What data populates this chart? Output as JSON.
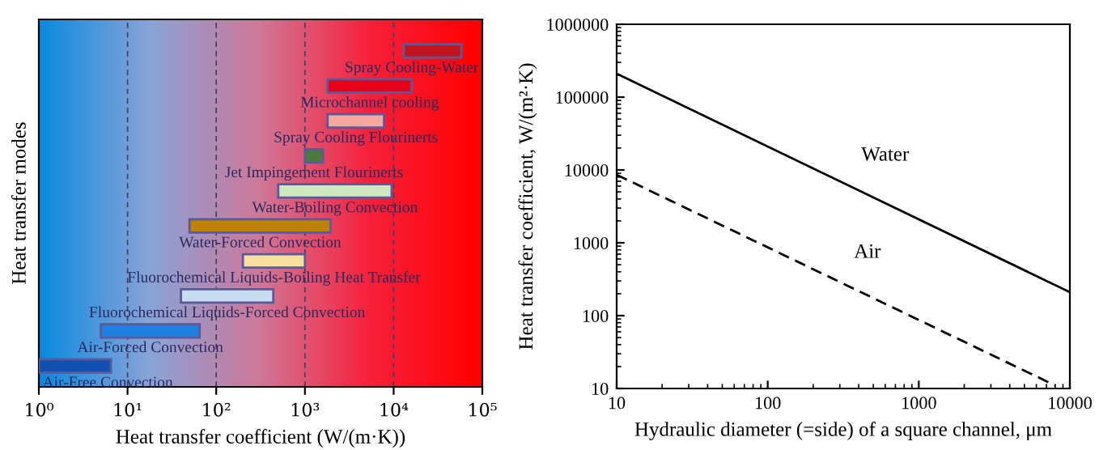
{
  "chart_data": [
    {
      "type": "bar",
      "orientation": "horizontal",
      "xlabel": "Heat transfer coefficient (W/(m·K))",
      "ylabel": "Heat transfer modes",
      "categories": [
        "Spray Cooling-Water",
        "Microchannel cooling",
        "Spray Cooling Flourinerts",
        "Jet Impingement Flourinerts",
        "Water-Boiling Convection",
        "Water-Forced Convection",
        "Fluorochemical Liquids-Boiling Heat Transfer",
        "Fluorochemical Liquids-Forced Convection",
        "Air-Forced Convection",
        "Air-Free Convection"
      ],
      "base": [
        13000,
        1800,
        1800,
        1000,
        500,
        50,
        200,
        40,
        5,
        1
      ],
      "values": [
        45000,
        14200,
        6000,
        600,
        9000,
        1900,
        800,
        400,
        60,
        5.5
      ],
      "colors": [
        "#c0141e",
        "#e8001a",
        "#f5a8a0",
        "#4a7a3a",
        "#d0e8c0",
        "#c08000",
        "#f8e0a0",
        "#c8ddf0",
        "#2080e0",
        "#1050b0"
      ],
      "log": "x",
      "xlim": [
        1,
        100000
      ],
      "xticks": [
        {
          "value": 1,
          "label": "10⁰"
        },
        {
          "value": 10,
          "label": "10¹"
        },
        {
          "value": 100,
          "label": "10²"
        },
        {
          "value": 1000,
          "label": "10³"
        },
        {
          "value": 10000,
          "label": "10⁴"
        },
        {
          "value": 100000,
          "label": "10⁵"
        }
      ],
      "grid": "x",
      "tick_labels": "x"
    },
    {
      "type": "line",
      "xlabel": "Hydraulic diameter (=side) of a square channel, μm",
      "ylabel": "Heat transfer coefficient, W/(m²·K)",
      "series": [
        {
          "name": "Water",
          "color": "#000000",
          "line_style": "solid",
          "x": [
            10,
            10000
          ],
          "values": [
            210000,
            210
          ]
        },
        {
          "name": "Air",
          "color": "#000000",
          "line_style": "dashed",
          "x": [
            10,
            8000
          ],
          "values": [
            8600,
            11
          ]
        }
      ],
      "log": "xy",
      "xlim": [
        10,
        10000
      ],
      "ylim": [
        10,
        1000000
      ],
      "xticks": [
        10,
        100,
        1000,
        10000
      ],
      "yticks": [
        10,
        100,
        1000,
        10000,
        100000,
        1000000
      ],
      "grid": false
    }
  ]
}
